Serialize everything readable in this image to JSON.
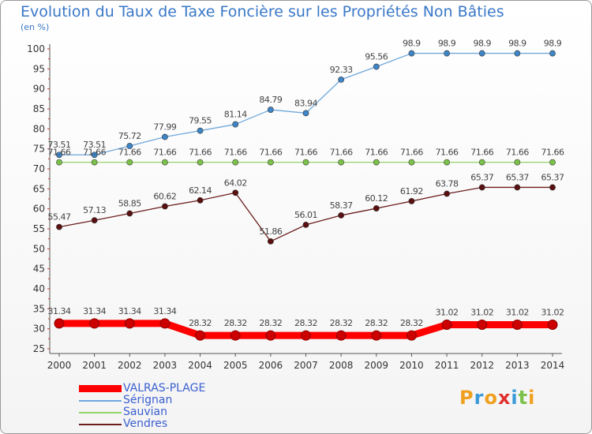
{
  "chart_data": {
    "type": "line",
    "title": "Evolution du Taux de Taxe Foncière sur les Propriétés Non Bâties",
    "subtitle": "(en %)",
    "x": [
      "2000",
      "2001",
      "2002",
      "2003",
      "2004",
      "2005",
      "2006",
      "2007",
      "2008",
      "2009",
      "2010",
      "2011",
      "2012",
      "2013",
      "2014"
    ],
    "ylim": [
      25,
      100
    ],
    "yticks": [
      "25",
      "30",
      "35",
      "40",
      "45",
      "50",
      "55",
      "60",
      "65",
      "70",
      "75",
      "80",
      "85",
      "90",
      "95",
      "100"
    ],
    "grid": false,
    "legend_placement": "bottom-left",
    "series": [
      {
        "name": "VALRAS-PLAGE",
        "color": "#ff0000",
        "marker_color": "#cc0000",
        "values": [
          31.34,
          31.34,
          31.34,
          31.34,
          28.32,
          28.32,
          28.32,
          28.32,
          28.32,
          28.32,
          28.32,
          31.02,
          31.02,
          31.02,
          31.02
        ],
        "labels": [
          "31.34",
          "31.34",
          "31.34",
          "31.34",
          "28.32",
          "28.32",
          "28.32",
          "28.32",
          "28.32",
          "28.32",
          "28.32",
          "31.02",
          "31.02",
          "31.02",
          "31.02"
        ]
      },
      {
        "name": "Sérignan",
        "color": "#6fa8dc",
        "marker_color": "#3d85c6",
        "values": [
          73.51,
          73.51,
          75.72,
          77.99,
          79.55,
          81.14,
          84.79,
          83.94,
          92.33,
          95.56,
          98.9,
          98.9,
          98.9,
          98.9,
          98.9
        ],
        "labels": [
          "73.51",
          "73.51",
          "75.72",
          "77.99",
          "79.55",
          "81.14",
          "84.79",
          "83.94",
          "92.33",
          "95.56",
          "98.9",
          "98.9",
          "98.9",
          "98.9",
          "98.9"
        ]
      },
      {
        "name": "Sauvian",
        "color": "#93d46a",
        "marker_color": "#7cc24a",
        "values": [
          71.66,
          71.66,
          71.66,
          71.66,
          71.66,
          71.66,
          71.66,
          71.66,
          71.66,
          71.66,
          71.66,
          71.66,
          71.66,
          71.66,
          71.66
        ],
        "labels": [
          "71.66",
          "71.66",
          "71.66",
          "71.66",
          "71.66",
          "71.66",
          "71.66",
          "71.66",
          "71.66",
          "71.66",
          "71.66",
          "71.66",
          "71.66",
          "71.66",
          "71.66"
        ]
      },
      {
        "name": "Vendres",
        "color": "#6b1e1e",
        "marker_color": "#5a1010",
        "values": [
          55.47,
          57.13,
          58.85,
          60.62,
          62.14,
          64.02,
          51.86,
          56.01,
          58.37,
          60.12,
          61.92,
          63.78,
          65.37,
          65.37,
          65.37
        ],
        "labels": [
          "55.47",
          "57.13",
          "58.85",
          "60.62",
          "62.14",
          "64.02",
          "51.86",
          "56.01",
          "58.37",
          "60.12",
          "61.92",
          "63.78",
          "65.37",
          "65.37",
          "65.37"
        ]
      }
    ]
  },
  "legend": {
    "items": [
      {
        "name": "VALRAS-PLAGE",
        "color": "#ff0000"
      },
      {
        "name": "Sérignan",
        "color": "#6fa8dc"
      },
      {
        "name": "Sauvian",
        "color": "#93d46a"
      },
      {
        "name": "Vendres",
        "color": "#6b1e1e"
      }
    ]
  },
  "logo": {
    "letters": [
      "P",
      "r",
      "o",
      "x",
      "i",
      "t",
      "i"
    ],
    "colors": [
      "#f0a020",
      "#3a9ad9",
      "#f0a020",
      "#e03030",
      "#3a9ad9",
      "#7cc24a",
      "#f0a020"
    ]
  }
}
